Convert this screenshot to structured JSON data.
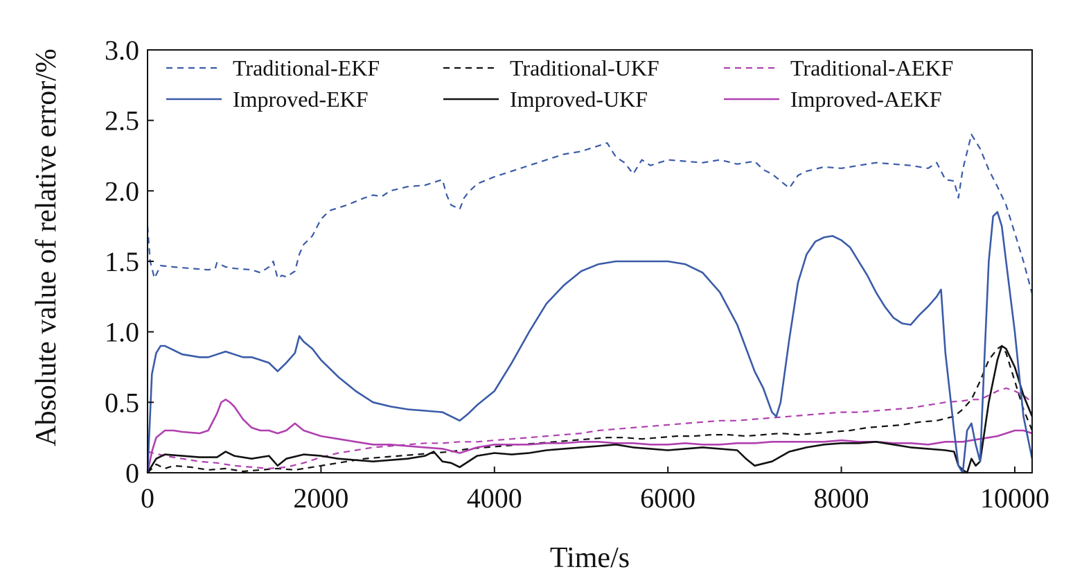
{
  "chart_data": {
    "type": "line",
    "title": "",
    "xlabel": "Time/s",
    "ylabel": "Absolute value of relative error/%",
    "xlim": [
      0,
      10200
    ],
    "ylim": [
      0,
      3.0
    ],
    "xticks": [
      0,
      2000,
      4000,
      6000,
      8000,
      10000
    ],
    "yticks": [
      0,
      0.5,
      1.0,
      1.5,
      2.0,
      2.5,
      3.0
    ],
    "xtick_labels": [
      "0",
      "2000",
      "4000",
      "6000",
      "8000",
      "10000"
    ],
    "ytick_labels": [
      "0",
      "0.5",
      "1.0",
      "1.5",
      "2.0",
      "2.5",
      "3.0"
    ],
    "legend_position": "top",
    "series": [
      {
        "name": "Traditional-EKF",
        "color": "#3a5ba8",
        "style": "dashed",
        "x": [
          0,
          30,
          80,
          150,
          300,
          500,
          700,
          780,
          800,
          900,
          1000,
          1200,
          1300,
          1400,
          1450,
          1500,
          1550,
          1600,
          1700,
          1750,
          1800,
          1900,
          2000,
          2100,
          2300,
          2500,
          2600,
          2700,
          2800,
          3000,
          3200,
          3300,
          3400,
          3450,
          3500,
          3600,
          3650,
          3700,
          3800,
          4000,
          4200,
          4400,
          4600,
          4800,
          5000,
          5100,
          5200,
          5300,
          5400,
          5500,
          5600,
          5700,
          5800,
          6000,
          6200,
          6400,
          6600,
          6800,
          7000,
          7100,
          7200,
          7300,
          7400,
          7500,
          7600,
          7800,
          8000,
          8200,
          8400,
          8600,
          8800,
          9000,
          9100,
          9200,
          9300,
          9350,
          9400,
          9500,
          9600,
          9700,
          9800,
          9900,
          10000,
          10100,
          10200
        ],
        "values": [
          1.75,
          1.5,
          1.38,
          1.47,
          1.46,
          1.45,
          1.44,
          1.45,
          1.49,
          1.46,
          1.45,
          1.44,
          1.42,
          1.46,
          1.5,
          1.38,
          1.4,
          1.39,
          1.43,
          1.55,
          1.62,
          1.68,
          1.8,
          1.86,
          1.9,
          1.95,
          1.97,
          1.96,
          2.0,
          2.03,
          2.04,
          2.06,
          2.08,
          1.97,
          1.9,
          1.87,
          1.95,
          1.99,
          2.05,
          2.1,
          2.14,
          2.18,
          2.22,
          2.26,
          2.28,
          2.3,
          2.32,
          2.34,
          2.24,
          2.2,
          2.12,
          2.22,
          2.18,
          2.22,
          2.21,
          2.2,
          2.22,
          2.19,
          2.21,
          2.15,
          2.12,
          2.07,
          2.02,
          2.11,
          2.14,
          2.17,
          2.16,
          2.18,
          2.2,
          2.19,
          2.18,
          2.16,
          2.2,
          2.08,
          2.07,
          1.95,
          2.15,
          2.4,
          2.3,
          2.15,
          2.03,
          1.9,
          1.7,
          1.5,
          1.27
        ]
      },
      {
        "name": "Traditional-UKF",
        "color": "#111111",
        "style": "dashed",
        "x": [
          0,
          100,
          200,
          300,
          500,
          700,
          900,
          1100,
          1300,
          1500,
          1700,
          1900,
          2100,
          2300,
          2500,
          2700,
          2900,
          3100,
          3300,
          3500,
          3700,
          3900,
          4100,
          4300,
          4500,
          4700,
          4900,
          5100,
          5300,
          5500,
          5700,
          5900,
          6100,
          6300,
          6500,
          6700,
          6900,
          7100,
          7300,
          7500,
          7700,
          7900,
          8100,
          8300,
          8500,
          8700,
          8900,
          9100,
          9300,
          9400,
          9500,
          9600,
          9700,
          9800,
          9850,
          9900,
          10000,
          10100,
          10200
        ],
        "values": [
          0.0,
          0.06,
          0.03,
          0.05,
          0.04,
          0.02,
          0.03,
          0.01,
          0.02,
          0.03,
          0.02,
          0.04,
          0.06,
          0.08,
          0.1,
          0.11,
          0.12,
          0.13,
          0.14,
          0.15,
          0.17,
          0.18,
          0.19,
          0.2,
          0.21,
          0.22,
          0.23,
          0.24,
          0.25,
          0.25,
          0.24,
          0.25,
          0.26,
          0.26,
          0.27,
          0.27,
          0.26,
          0.27,
          0.28,
          0.27,
          0.28,
          0.29,
          0.3,
          0.32,
          0.33,
          0.34,
          0.36,
          0.37,
          0.4,
          0.45,
          0.52,
          0.65,
          0.8,
          0.88,
          0.9,
          0.85,
          0.65,
          0.45,
          0.3
        ]
      },
      {
        "name": "Traditional-AEKF",
        "color": "#b040b0",
        "style": "dashed",
        "x": [
          0,
          200,
          400,
          600,
          800,
          1000,
          1200,
          1400,
          1600,
          1800,
          2000,
          2200,
          2400,
          2600,
          2800,
          3000,
          3200,
          3400,
          3600,
          3800,
          4000,
          4200,
          4400,
          4600,
          4800,
          5000,
          5200,
          5400,
          5600,
          5800,
          6000,
          6200,
          6400,
          6600,
          6800,
          7000,
          7200,
          7400,
          7600,
          7800,
          8000,
          8200,
          8400,
          8600,
          8800,
          9000,
          9200,
          9400,
          9500,
          9600,
          9700,
          9800,
          9900,
          10000,
          10100,
          10200
        ],
        "values": [
          0.15,
          0.12,
          0.1,
          0.08,
          0.07,
          0.05,
          0.04,
          0.03,
          0.04,
          0.07,
          0.11,
          0.14,
          0.16,
          0.18,
          0.19,
          0.2,
          0.21,
          0.21,
          0.22,
          0.22,
          0.23,
          0.24,
          0.25,
          0.26,
          0.27,
          0.28,
          0.3,
          0.31,
          0.32,
          0.33,
          0.34,
          0.35,
          0.36,
          0.37,
          0.37,
          0.38,
          0.39,
          0.4,
          0.41,
          0.42,
          0.43,
          0.43,
          0.44,
          0.45,
          0.46,
          0.48,
          0.5,
          0.51,
          0.52,
          0.52,
          0.55,
          0.58,
          0.6,
          0.58,
          0.55,
          0.5
        ]
      },
      {
        "name": "Improved-EKF",
        "color": "#3a5ba8",
        "style": "solid",
        "x": [
          0,
          50,
          100,
          150,
          200,
          300,
          400,
          500,
          600,
          700,
          800,
          900,
          1000,
          1100,
          1200,
          1300,
          1400,
          1500,
          1600,
          1700,
          1750,
          1800,
          1900,
          2000,
          2200,
          2400,
          2600,
          2800,
          3000,
          3200,
          3400,
          3500,
          3600,
          3700,
          3800,
          4000,
          4200,
          4400,
          4600,
          4800,
          5000,
          5200,
          5400,
          5600,
          5800,
          6000,
          6200,
          6400,
          6600,
          6800,
          7000,
          7100,
          7200,
          7250,
          7300,
          7400,
          7500,
          7600,
          7700,
          7800,
          7900,
          8000,
          8100,
          8200,
          8300,
          8400,
          8500,
          8600,
          8700,
          8800,
          8900,
          9000,
          9100,
          9150,
          9200,
          9300,
          9350,
          9400,
          9450,
          9500,
          9550,
          9600,
          9650,
          9700,
          9750,
          9800,
          9850,
          9900,
          10000,
          10100,
          10200
        ],
        "values": [
          0.0,
          0.7,
          0.85,
          0.9,
          0.9,
          0.87,
          0.84,
          0.83,
          0.82,
          0.82,
          0.84,
          0.86,
          0.84,
          0.82,
          0.82,
          0.8,
          0.78,
          0.72,
          0.78,
          0.85,
          0.97,
          0.93,
          0.88,
          0.8,
          0.68,
          0.58,
          0.5,
          0.47,
          0.45,
          0.44,
          0.43,
          0.4,
          0.37,
          0.42,
          0.48,
          0.58,
          0.78,
          1.0,
          1.2,
          1.33,
          1.43,
          1.48,
          1.5,
          1.5,
          1.5,
          1.5,
          1.48,
          1.42,
          1.28,
          1.05,
          0.72,
          0.6,
          0.43,
          0.4,
          0.5,
          0.95,
          1.35,
          1.55,
          1.64,
          1.67,
          1.68,
          1.65,
          1.6,
          1.5,
          1.4,
          1.28,
          1.18,
          1.1,
          1.06,
          1.05,
          1.12,
          1.18,
          1.25,
          1.3,
          0.85,
          0.3,
          0.05,
          0.0,
          0.3,
          0.35,
          0.2,
          0.08,
          0.8,
          1.5,
          1.82,
          1.85,
          1.75,
          1.5,
          1.0,
          0.4,
          0.1
        ]
      },
      {
        "name": "Improved-UKF",
        "color": "#111111",
        "style": "solid",
        "x": [
          0,
          100,
          200,
          400,
          600,
          800,
          900,
          1000,
          1200,
          1300,
          1400,
          1500,
          1600,
          1800,
          2000,
          2200,
          2400,
          2600,
          2800,
          3000,
          3200,
          3300,
          3400,
          3500,
          3600,
          3800,
          4000,
          4200,
          4400,
          4600,
          4800,
          5000,
          5200,
          5400,
          5600,
          5800,
          6000,
          6200,
          6400,
          6600,
          6800,
          6900,
          7000,
          7200,
          7400,
          7600,
          7800,
          8000,
          8200,
          8400,
          8600,
          8800,
          9000,
          9200,
          9300,
          9350,
          9400,
          9450,
          9500,
          9550,
          9600,
          9700,
          9800,
          9850,
          9900,
          10000,
          10100,
          10200
        ],
        "values": [
          0.0,
          0.1,
          0.13,
          0.12,
          0.11,
          0.11,
          0.15,
          0.12,
          0.1,
          0.11,
          0.12,
          0.05,
          0.1,
          0.13,
          0.12,
          0.1,
          0.09,
          0.08,
          0.09,
          0.1,
          0.12,
          0.15,
          0.08,
          0.07,
          0.04,
          0.12,
          0.14,
          0.13,
          0.14,
          0.16,
          0.17,
          0.18,
          0.19,
          0.2,
          0.18,
          0.17,
          0.16,
          0.17,
          0.18,
          0.17,
          0.16,
          0.1,
          0.05,
          0.08,
          0.15,
          0.18,
          0.2,
          0.21,
          0.21,
          0.22,
          0.2,
          0.18,
          0.17,
          0.16,
          0.15,
          0.05,
          0.02,
          0.0,
          0.1,
          0.05,
          0.08,
          0.5,
          0.8,
          0.9,
          0.88,
          0.75,
          0.55,
          0.4
        ]
      },
      {
        "name": "Improved-AEKF",
        "color": "#b040b0",
        "style": "solid",
        "x": [
          0,
          50,
          100,
          200,
          300,
          400,
          600,
          700,
          800,
          850,
          900,
          950,
          1000,
          1100,
          1200,
          1300,
          1400,
          1500,
          1600,
          1700,
          1800,
          2000,
          2200,
          2400,
          2600,
          2800,
          3000,
          3200,
          3400,
          3600,
          3800,
          4000,
          4200,
          4400,
          4600,
          4800,
          5000,
          5200,
          5400,
          5600,
          5800,
          6000,
          6200,
          6400,
          6600,
          6800,
          7000,
          7200,
          7400,
          7600,
          7800,
          8000,
          8200,
          8400,
          8600,
          8800,
          9000,
          9200,
          9400,
          9500,
          9600,
          9700,
          9800,
          9900,
          10000,
          10100,
          10200
        ],
        "values": [
          0.0,
          0.15,
          0.25,
          0.3,
          0.3,
          0.29,
          0.28,
          0.3,
          0.42,
          0.5,
          0.52,
          0.5,
          0.47,
          0.38,
          0.32,
          0.3,
          0.3,
          0.28,
          0.3,
          0.35,
          0.3,
          0.26,
          0.24,
          0.22,
          0.2,
          0.2,
          0.19,
          0.18,
          0.17,
          0.14,
          0.18,
          0.2,
          0.2,
          0.2,
          0.21,
          0.21,
          0.22,
          0.22,
          0.21,
          0.21,
          0.2,
          0.2,
          0.21,
          0.2,
          0.2,
          0.21,
          0.21,
          0.22,
          0.22,
          0.22,
          0.22,
          0.23,
          0.22,
          0.22,
          0.21,
          0.21,
          0.2,
          0.22,
          0.22,
          0.23,
          0.24,
          0.25,
          0.26,
          0.28,
          0.3,
          0.3,
          0.28
        ]
      }
    ]
  }
}
